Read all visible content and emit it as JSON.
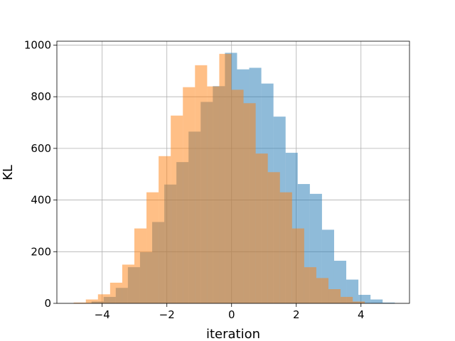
{
  "chart_data": {
    "type": "bar",
    "title": "",
    "xlabel": "iteration",
    "ylabel": "KL",
    "xlim": [
      -5.4,
      5.5
    ],
    "ylim": [
      0,
      1015
    ],
    "xticks": [
      -4,
      -2,
      0,
      2,
      4
    ],
    "xtick_labels": [
      "−4",
      "−2",
      "0",
      "2",
      "4"
    ],
    "yticks": [
      0,
      200,
      400,
      600,
      800,
      1000
    ],
    "ytick_labels": [
      "0",
      "200",
      "400",
      "600",
      "800",
      "1000"
    ],
    "grid": true,
    "legend": "none",
    "bin_width": 0.375,
    "series": [
      {
        "color": "#1f77b4",
        "opacity": 0.5,
        "bin_edges_start": -4.33,
        "values": [
          7,
          25,
          60,
          140,
          198,
          315,
          460,
          547,
          665,
          780,
          841,
          970,
          906,
          912,
          851,
          723,
          583,
          462,
          424,
          285,
          165,
          92,
          33,
          15,
          3
        ]
      },
      {
        "color": "#ff7f0e",
        "opacity": 0.5,
        "bin_edges_start": -4.88,
        "values": [
          3,
          15,
          35,
          80,
          150,
          290,
          430,
          570,
          727,
          837,
          922,
          840,
          966,
          827,
          775,
          580,
          508,
          430,
          290,
          140,
          98,
          55,
          25,
          7
        ]
      }
    ]
  }
}
